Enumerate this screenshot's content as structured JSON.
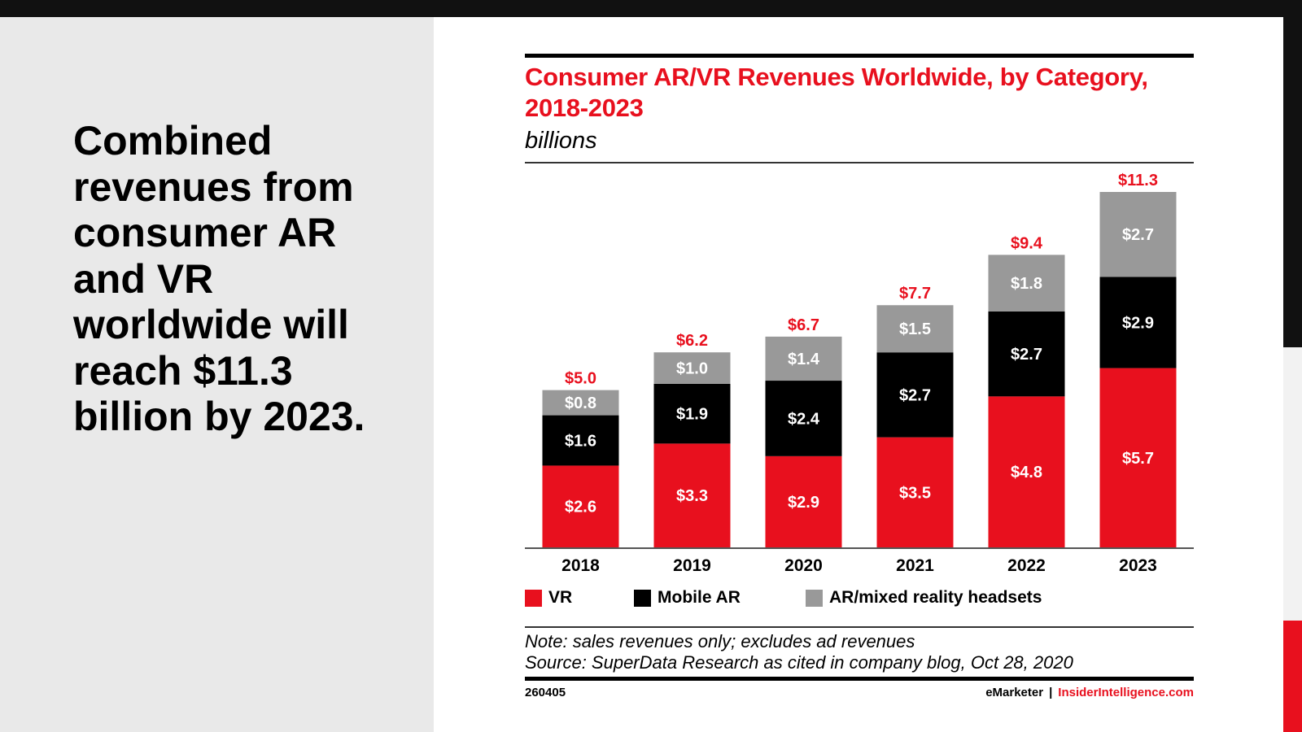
{
  "slide": {
    "headline": "Combined revenues from consumer AR and VR worldwide will reach $11.3 billion by 2023."
  },
  "colors": {
    "brand_red": "#e8101e",
    "vr": "#e8101e",
    "mobile_ar": "#000000",
    "headsets": "#999999",
    "total_label": "#e8101e"
  },
  "chart_data": {
    "type": "bar",
    "stacked": true,
    "title": "Consumer AR/VR Revenues Worldwide, by Category, 2018-2023",
    "subtitle": "billions",
    "xlabel": "",
    "ylabel": "",
    "ylim": [
      0,
      11.3
    ],
    "grid": false,
    "legend_position": "bottom",
    "categories": [
      "2018",
      "2019",
      "2020",
      "2021",
      "2022",
      "2023"
    ],
    "series": [
      {
        "name": "VR",
        "values": [
          2.6,
          3.3,
          2.9,
          3.5,
          4.8,
          5.7
        ],
        "labels": [
          "$2.6",
          "$3.3",
          "$2.9",
          "$3.5",
          "$4.8",
          "$5.7"
        ]
      },
      {
        "name": "Mobile AR",
        "values": [
          1.6,
          1.9,
          2.4,
          2.7,
          2.7,
          2.9
        ],
        "labels": [
          "$1.6",
          "$1.9",
          "$2.4",
          "$2.7",
          "$2.7",
          "$2.9"
        ]
      },
      {
        "name": "AR/mixed reality headsets",
        "values": [
          0.8,
          1.0,
          1.4,
          1.5,
          1.8,
          2.7
        ],
        "labels": [
          "$0.8",
          "$1.0",
          "$1.4",
          "$1.5",
          "$1.8",
          "$2.7"
        ]
      }
    ],
    "totals": [
      5.0,
      6.2,
      6.7,
      7.7,
      9.4,
      11.3
    ],
    "total_labels": [
      "$5.0",
      "$6.2",
      "$6.7",
      "$7.7",
      "$9.4",
      "$11.3"
    ],
    "note": "Note: sales revenues only; excludes ad revenues",
    "source": "Source: SuperData Research as cited in company blog, Oct 28, 2020"
  },
  "footer": {
    "chart_id": "260405",
    "publisher": "eMarketer",
    "separator": "|",
    "website": "InsiderIntelligence.com"
  }
}
